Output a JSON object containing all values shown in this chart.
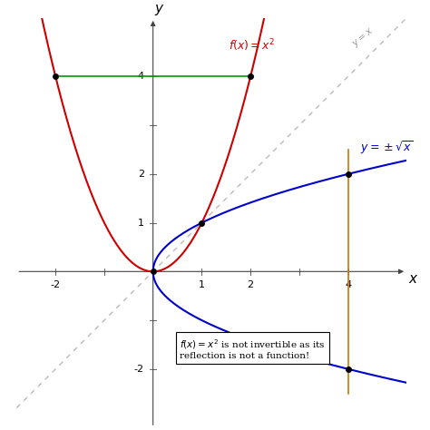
{
  "xlim": [
    -2.8,
    5.2
  ],
  "ylim": [
    -3.2,
    5.2
  ],
  "x_axis_label": "x",
  "y_axis_label": "y",
  "parabola_color": "#cc0000",
  "sqrt_color": "#0000cc",
  "diagonal_color": "#bbbbbb",
  "green_line_color": "#009900",
  "orange_line_color": "#cc7700",
  "annotation_line1": "$f(x) = x^2$ is not invertible as its",
  "annotation_line2": "reflection is not a function!",
  "label_fx": "$f(x)=x^2$",
  "label_sqrt": "$y=\\pm\\sqrt{x}$",
  "label_diag": "$y=x$",
  "green_line_y": 4,
  "green_line_x": [
    -2,
    2
  ],
  "orange_line_x": 4,
  "orange_line_y": [
    -2.5,
    2.5
  ],
  "dot_points": [
    [
      0,
      0
    ],
    [
      1,
      1
    ],
    [
      4,
      2
    ],
    [
      4,
      -2
    ],
    [
      -2,
      4
    ],
    [
      2,
      4
    ]
  ],
  "xticks_labeled": [
    -2,
    1,
    2,
    4
  ],
  "yticks_labeled": [
    -2,
    1,
    2,
    4
  ],
  "figsize": [
    4.74,
    4.74
  ],
  "dpi": 100
}
